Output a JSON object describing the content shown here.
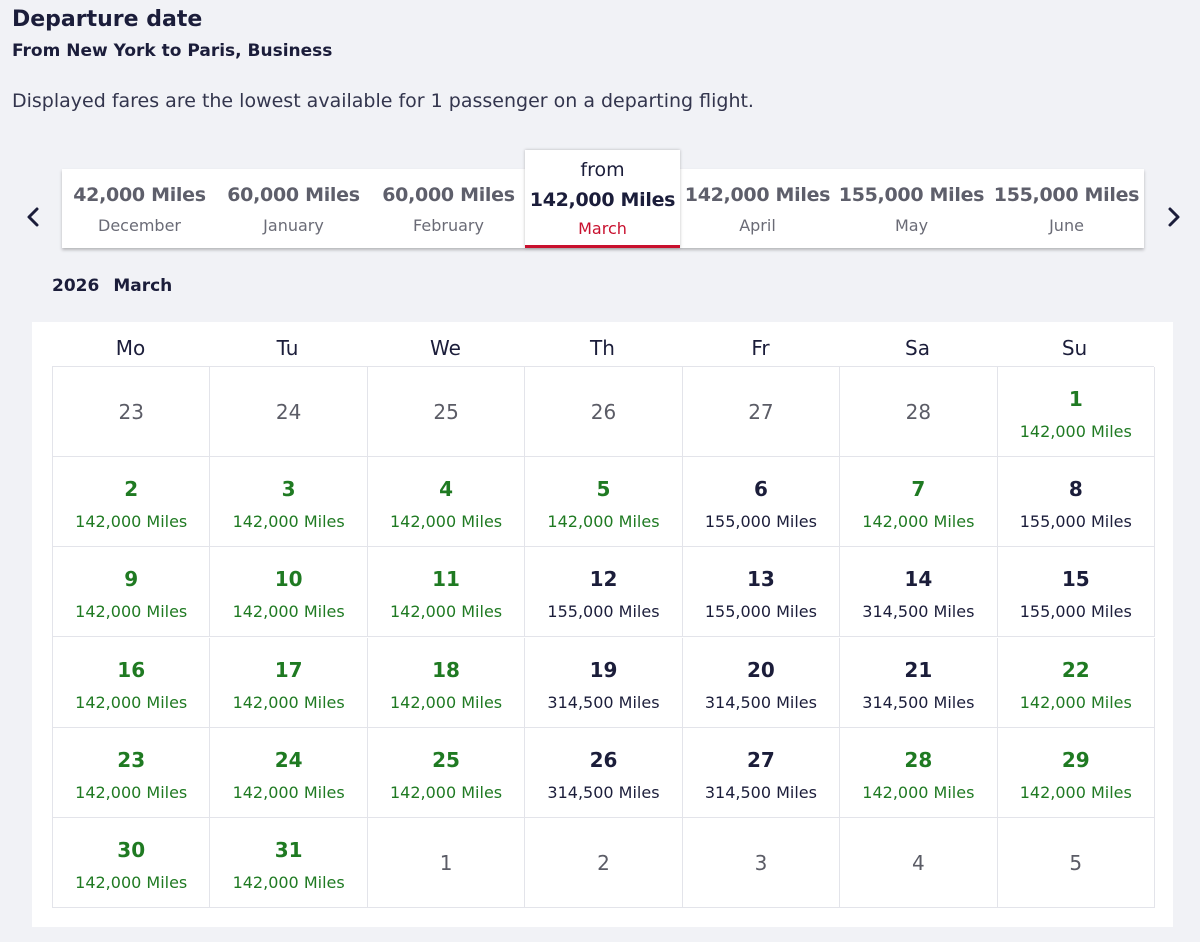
{
  "header": {
    "title": "Departure date",
    "subtitle": "From New York to Paris, Business",
    "note": "Displayed fares are the lowest available for 1 passenger on a departing flight."
  },
  "months": [
    {
      "miles": "42,000 Miles",
      "name": "December"
    },
    {
      "miles": "60,000 Miles",
      "name": "January"
    },
    {
      "miles": "60,000 Miles",
      "name": "February"
    },
    {
      "from": "from",
      "miles": "142,000 Miles",
      "name": "March",
      "selected": true
    },
    {
      "miles": "142,000 Miles",
      "name": "April"
    },
    {
      "miles": "155,000 Miles",
      "name": "May"
    },
    {
      "miles": "155,000 Miles",
      "name": "June"
    }
  ],
  "nav": {
    "prev_icon": "chevron-left-icon",
    "next_icon": "chevron-right-icon"
  },
  "calendar": {
    "year": "2026",
    "month": "March",
    "weekdays": [
      "Mo",
      "Tu",
      "We",
      "Th",
      "Fr",
      "Sa",
      "Su"
    ],
    "days": [
      {
        "d": "23",
        "p": "",
        "t": "out"
      },
      {
        "d": "24",
        "p": "",
        "t": "out"
      },
      {
        "d": "25",
        "p": "",
        "t": "out"
      },
      {
        "d": "26",
        "p": "",
        "t": "out"
      },
      {
        "d": "27",
        "p": "",
        "t": "out"
      },
      {
        "d": "28",
        "p": "",
        "t": "out"
      },
      {
        "d": "1",
        "p": "142,000 Miles",
        "t": "low"
      },
      {
        "d": "2",
        "p": "142,000 Miles",
        "t": "low"
      },
      {
        "d": "3",
        "p": "142,000 Miles",
        "t": "low"
      },
      {
        "d": "4",
        "p": "142,000 Miles",
        "t": "low"
      },
      {
        "d": "5",
        "p": "142,000 Miles",
        "t": "low"
      },
      {
        "d": "6",
        "p": "155,000 Miles",
        "t": "high"
      },
      {
        "d": "7",
        "p": "142,000 Miles",
        "t": "low"
      },
      {
        "d": "8",
        "p": "155,000 Miles",
        "t": "high"
      },
      {
        "d": "9",
        "p": "142,000 Miles",
        "t": "low"
      },
      {
        "d": "10",
        "p": "142,000 Miles",
        "t": "low"
      },
      {
        "d": "11",
        "p": "142,000 Miles",
        "t": "low"
      },
      {
        "d": "12",
        "p": "155,000 Miles",
        "t": "high"
      },
      {
        "d": "13",
        "p": "155,000 Miles",
        "t": "high"
      },
      {
        "d": "14",
        "p": "314,500 Miles",
        "t": "high"
      },
      {
        "d": "15",
        "p": "155,000 Miles",
        "t": "high"
      },
      {
        "d": "16",
        "p": "142,000 Miles",
        "t": "low"
      },
      {
        "d": "17",
        "p": "142,000 Miles",
        "t": "low"
      },
      {
        "d": "18",
        "p": "142,000 Miles",
        "t": "low"
      },
      {
        "d": "19",
        "p": "314,500 Miles",
        "t": "high"
      },
      {
        "d": "20",
        "p": "314,500 Miles",
        "t": "high"
      },
      {
        "d": "21",
        "p": "314,500 Miles",
        "t": "high"
      },
      {
        "d": "22",
        "p": "142,000 Miles",
        "t": "low"
      },
      {
        "d": "23",
        "p": "142,000 Miles",
        "t": "low"
      },
      {
        "d": "24",
        "p": "142,000 Miles",
        "t": "low"
      },
      {
        "d": "25",
        "p": "142,000 Miles",
        "t": "low"
      },
      {
        "d": "26",
        "p": "314,500 Miles",
        "t": "high"
      },
      {
        "d": "27",
        "p": "314,500 Miles",
        "t": "high"
      },
      {
        "d": "28",
        "p": "142,000 Miles",
        "t": "low"
      },
      {
        "d": "29",
        "p": "142,000 Miles",
        "t": "low"
      },
      {
        "d": "30",
        "p": "142,000 Miles",
        "t": "low"
      },
      {
        "d": "31",
        "p": "142,000 Miles",
        "t": "low"
      },
      {
        "d": "1",
        "p": "",
        "t": "out"
      },
      {
        "d": "2",
        "p": "",
        "t": "out"
      },
      {
        "d": "3",
        "p": "",
        "t": "out"
      },
      {
        "d": "4",
        "p": "",
        "t": "out"
      },
      {
        "d": "5",
        "p": "",
        "t": "out"
      }
    ]
  },
  "colors": {
    "lowest_fare": "#1f7a22",
    "regular_fare": "#1b1d3a",
    "selected_accent": "#c8102e",
    "page_background": "#f1f2f6"
  }
}
